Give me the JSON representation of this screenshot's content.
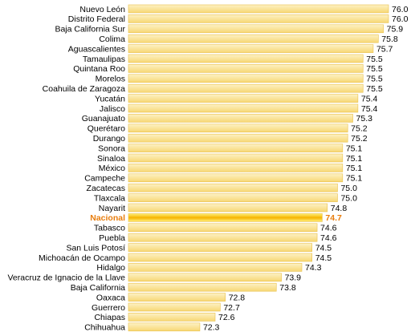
{
  "chart_data": {
    "type": "bar",
    "orientation": "horizontal",
    "categories": [
      "Nuevo León",
      "Distrito Federal",
      "Baja California Sur",
      "Colima",
      "Aguascalientes",
      "Tamaulipas",
      "Quintana Roo",
      "Morelos",
      "Coahuila de Zaragoza",
      "Yucatán",
      "Jalisco",
      "Guanajuato",
      "Querétaro",
      "Durango",
      "Sonora",
      "Sinaloa",
      "México",
      "Campeche",
      "Zacatecas",
      "Tlaxcala",
      "Nayarit",
      "Nacional",
      "Tabasco",
      "Puebla",
      "San Luis Potosí",
      "Michoacán de Ocampo",
      "Hidalgo",
      "Veracruz de Ignacio de la Llave",
      "Baja California",
      "Oaxaca",
      "Guerrero",
      "Chiapas",
      "Chihuahua"
    ],
    "values": [
      76.0,
      76.0,
      75.9,
      75.8,
      75.7,
      75.5,
      75.5,
      75.5,
      75.5,
      75.4,
      75.4,
      75.3,
      75.2,
      75.2,
      75.1,
      75.1,
      75.1,
      75.1,
      75.0,
      75.0,
      74.8,
      74.7,
      74.6,
      74.6,
      74.5,
      74.5,
      74.3,
      73.9,
      73.8,
      72.8,
      72.7,
      72.6,
      72.3
    ],
    "value_labels": [
      "76.0",
      "76.0",
      "75.9",
      "75.8",
      "75.7",
      "75.5",
      "75.5",
      "75.5",
      "75.5",
      "75.4",
      "75.4",
      "75.3",
      "75.2",
      "75.2",
      "75.1",
      "75.1",
      "75.1",
      "75.1",
      "75.0",
      "75.0",
      "74.8",
      "74.7",
      "74.6",
      "74.6",
      "74.5",
      "74.5",
      "74.3",
      "73.9",
      "73.8",
      "72.8",
      "72.7",
      "72.6",
      "72.3"
    ],
    "highlight_category": "Nacional",
    "axis_range": [
      70.9,
      76.0
    ],
    "grid": false,
    "colors": {
      "bar_fill_light": "#fdf1c4",
      "bar_fill_dark": "#f7d774",
      "bar_stroke": "#e9c04a",
      "highlight_light": "#fff07a",
      "highlight_dark": "#f6b400",
      "highlight_text": "#e87d0d"
    }
  }
}
